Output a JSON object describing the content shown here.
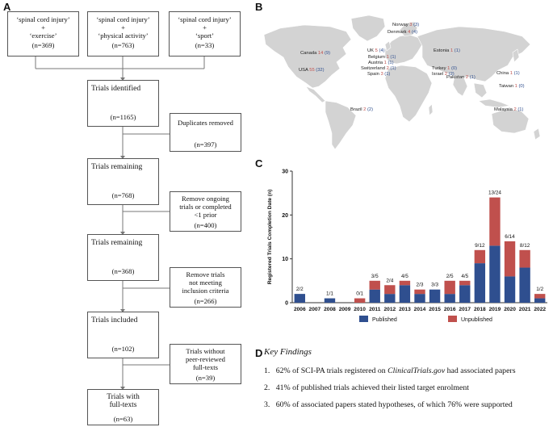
{
  "panels": {
    "a": "A",
    "b": "B",
    "c": "C",
    "d": "D"
  },
  "flow": {
    "search": [
      {
        "l1": "‘spinal cord injury’",
        "l2": "+",
        "l3": "‘exercise’",
        "n": "(n=369)"
      },
      {
        "l1": "‘spinal cord injury’",
        "l2": "+",
        "l3": "‘physical activity’",
        "n": "(n=763)"
      },
      {
        "l1": "‘spinal cord injury’",
        "l2": "+",
        "l3": "‘sport’",
        "n": "(n=33)"
      }
    ],
    "main": [
      {
        "title": "Trials identified",
        "n": "(n=1165)"
      },
      {
        "title": "Trials remaining",
        "n": "(n=768)"
      },
      {
        "title": "Trials remaining",
        "n": "(n=368)"
      },
      {
        "title": "Trials included",
        "n": "(n=102)"
      },
      {
        "title1": "Trials with",
        "title2": "full-texts",
        "n": "(n=63)"
      }
    ],
    "excl": [
      {
        "lines": [
          "Duplicates removed"
        ],
        "n": "(n=397)"
      },
      {
        "lines": [
          "Remove ongoing",
          "trials or completed",
          "<1 prior"
        ],
        "n": "(n=400)"
      },
      {
        "lines": [
          "Remove trials",
          "not meeting",
          "inclusion criteria"
        ],
        "n": "(n=266)"
      },
      {
        "lines": [
          "Trials without",
          "peer-reviewed",
          "full-texts"
        ],
        "n": "(n=39)"
      }
    ]
  },
  "map": {
    "colors": {
      "published": "#2f4f8f",
      "unpublished": "#c0504d",
      "land": "#d3d3d3"
    },
    "labels": [
      {
        "country": "Norway",
        "pub": "3",
        "tot": "(3)"
      },
      {
        "country": "Denmark",
        "pub": "4",
        "tot": "(4)"
      },
      {
        "country": "UK",
        "pub": "5",
        "tot": "(4)"
      },
      {
        "country": "Belgium",
        "pub": "1",
        "tot": "(1)"
      },
      {
        "country": "Austria",
        "pub": "1",
        "tot": "(1)"
      },
      {
        "country": "Switzerland",
        "pub": "2",
        "tot": "(1)"
      },
      {
        "country": "Spain",
        "pub": "3",
        "tot": "(1)"
      },
      {
        "country": "Estonia",
        "pub": "1",
        "tot": "(1)"
      },
      {
        "country": "Canada",
        "pub": "14",
        "tot": "(9)"
      },
      {
        "country": "USA",
        "pub": "55",
        "tot": "(32)"
      },
      {
        "country": "Turkey",
        "pub": "1",
        "tot": "(0)"
      },
      {
        "country": "Israel",
        "pub": "2",
        "tot": "(2)"
      },
      {
        "country": "Pakistan",
        "pub": "2",
        "tot": "(1)"
      },
      {
        "country": "China",
        "pub": "1",
        "tot": "(1)"
      },
      {
        "country": "Taiwan",
        "pub": "1",
        "tot": "(0)"
      },
      {
        "country": "Malaysia",
        "pub": "2",
        "tot": "(1)"
      },
      {
        "country": "Brazil",
        "pub": "2",
        "tot": "(2)"
      }
    ]
  },
  "chart_data": {
    "type": "bar",
    "stacked": true,
    "ylabel": "Registered Trials Completion Date (n)",
    "ylim": [
      0,
      30
    ],
    "yticks": [
      0,
      10,
      20,
      30
    ],
    "categories": [
      "2006",
      "2007",
      "2008",
      "2009",
      "2010",
      "2011",
      "2012",
      "2013",
      "2014",
      "2015",
      "2016",
      "2017",
      "2018",
      "2019",
      "2020",
      "2021",
      "2022"
    ],
    "series": [
      {
        "name": "Published",
        "color": "#2f4f8f",
        "values": [
          2,
          0,
          1,
          0,
          0,
          3,
          2,
          4,
          2,
          3,
          2,
          4,
          9,
          13,
          6,
          8,
          1
        ]
      },
      {
        "name": "Unpublished",
        "color": "#c0504d",
        "values": [
          0,
          0,
          0,
          0,
          1,
          2,
          2,
          1,
          1,
          0,
          3,
          1,
          3,
          11,
          8,
          4,
          1
        ]
      }
    ],
    "bar_labels": [
      "2/2",
      "",
      "1/1",
      "",
      "0/1",
      "3/5",
      "2/4",
      "4/5",
      "2/3",
      "3/3",
      "2/5",
      "4/5",
      "9/12",
      "13/24",
      "6/14",
      "8/12",
      "1/2"
    ],
    "legend": "bottom"
  },
  "findings": {
    "title": "Key Findings",
    "items": [
      {
        "num": "1.",
        "pre": "62% of SCI-PA trials registered on ",
        "ital": "ClinicalTrials.gov",
        "post": " had associated papers"
      },
      {
        "num": "2.",
        "pre": "41% of published trials achieved their listed target enrolment",
        "ital": "",
        "post": ""
      },
      {
        "num": "3.",
        "pre": "60% of associated papers stated hypotheses, of which 76% were supported",
        "ital": "",
        "post": ""
      }
    ]
  }
}
